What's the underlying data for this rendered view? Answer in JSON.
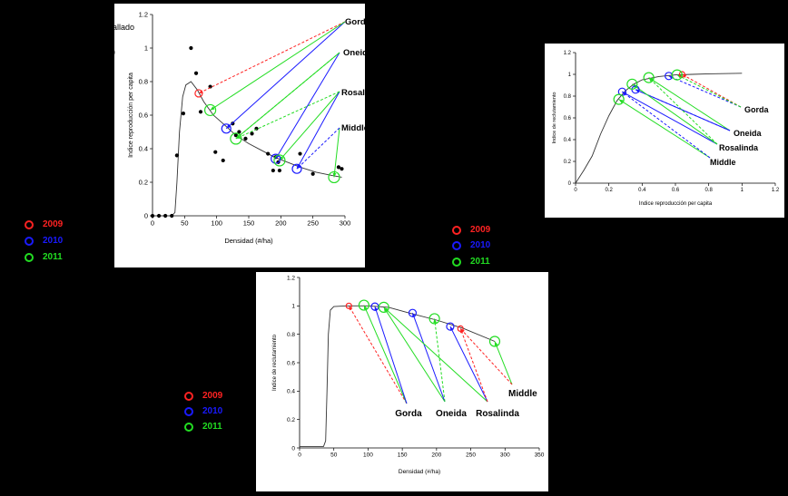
{
  "colors": {
    "y2009": "#ff2222",
    "y2010": "#1a1aff",
    "y2011": "#22dd22"
  },
  "legend": {
    "items": [
      {
        "year": "2009",
        "color": "#ff2222"
      },
      {
        "year": "2010",
        "color": "#1a1aff"
      },
      {
        "year": "2011",
        "color": "#22dd22"
      }
    ]
  },
  "left_partial": {
    "text1": "allado",
    "text2": ")"
  },
  "chart_data": [
    {
      "id": "chart1",
      "type": "scatter",
      "xlabel": "Densidad (#/ha)",
      "ylabel": "Indice reproducción per capita",
      "xlim": [
        0,
        300
      ],
      "ylim": [
        0,
        1.2
      ],
      "xticks": [
        0,
        50,
        100,
        150,
        200,
        250,
        300
      ],
      "yticks": [
        0,
        0.2,
        0.4,
        0.6,
        0.8,
        1,
        1.2
      ],
      "curve": [
        [
          0,
          0
        ],
        [
          30,
          0
        ],
        [
          35,
          0.02
        ],
        [
          38,
          0.2
        ],
        [
          42,
          0.5
        ],
        [
          47,
          0.71
        ],
        [
          52,
          0.78
        ],
        [
          60,
          0.8
        ],
        [
          70,
          0.75
        ],
        [
          80,
          0.68
        ],
        [
          95,
          0.6
        ],
        [
          110,
          0.55
        ],
        [
          130,
          0.48
        ],
        [
          150,
          0.43
        ],
        [
          170,
          0.39
        ],
        [
          190,
          0.35
        ],
        [
          210,
          0.32
        ],
        [
          230,
          0.29
        ],
        [
          255,
          0.26
        ],
        [
          280,
          0.24
        ],
        [
          295,
          0.23
        ]
      ],
      "points": [
        [
          0,
          0
        ],
        [
          10,
          0
        ],
        [
          20,
          0
        ],
        [
          30,
          0
        ],
        [
          38,
          0.36
        ],
        [
          48,
          0.61
        ],
        [
          60,
          1.0
        ],
        [
          68,
          0.85
        ],
        [
          75,
          0.62
        ],
        [
          90,
          0.77
        ],
        [
          98,
          0.38
        ],
        [
          110,
          0.33
        ],
        [
          125,
          0.55
        ],
        [
          130,
          0.48
        ],
        [
          135,
          0.5
        ],
        [
          145,
          0.46
        ],
        [
          155,
          0.49
        ],
        [
          162,
          0.52
        ],
        [
          180,
          0.37
        ],
        [
          188,
          0.27
        ],
        [
          192,
          0.35
        ],
        [
          196,
          0.32
        ],
        [
          198,
          0.27
        ],
        [
          230,
          0.37
        ],
        [
          250,
          0.25
        ],
        [
          290,
          0.29
        ],
        [
          295,
          0.28
        ]
      ],
      "markers": [
        {
          "year": "2009",
          "x": 72,
          "y": 0.73
        },
        {
          "year": "2010",
          "x": 115,
          "y": 0.52
        },
        {
          "year": "2010",
          "x": 192,
          "y": 0.34
        },
        {
          "year": "2010",
          "x": 225,
          "y": 0.28
        },
        {
          "year": "2011",
          "x": 90,
          "y": 0.63
        },
        {
          "year": "2011",
          "x": 130,
          "y": 0.46
        },
        {
          "year": "2011",
          "x": 198,
          "y": 0.33
        },
        {
          "year": "2011",
          "x": 283,
          "y": 0.23
        }
      ],
      "lakes": [
        "Gorda",
        "Oneida",
        "Rosalinda",
        "Middle"
      ]
    },
    {
      "id": "chart2",
      "type": "line",
      "xlabel": "Indice reproducción per capita",
      "ylabel": "Indice de reclutamiento",
      "xlim": [
        0,
        1.2
      ],
      "ylim": [
        0,
        1.2
      ],
      "xticks": [
        0,
        0.2,
        0.4,
        0.6,
        0.8,
        1,
        1.2
      ],
      "yticks": [
        0,
        0.2,
        0.4,
        0.6,
        0.8,
        1,
        1.2
      ],
      "curve": [
        [
          0,
          0
        ],
        [
          0.05,
          0.12
        ],
        [
          0.1,
          0.25
        ],
        [
          0.15,
          0.45
        ],
        [
          0.2,
          0.62
        ],
        [
          0.25,
          0.76
        ],
        [
          0.3,
          0.85
        ],
        [
          0.35,
          0.91
        ],
        [
          0.4,
          0.95
        ],
        [
          0.5,
          0.98
        ],
        [
          0.6,
          0.995
        ],
        [
          0.7,
          1.0
        ],
        [
          0.8,
          1.005
        ],
        [
          1.0,
          1.01
        ]
      ],
      "markers": [
        {
          "year": "2009",
          "x": 0.64,
          "y": 1.0
        },
        {
          "year": "2010",
          "x": 0.28,
          "y": 0.84
        },
        {
          "year": "2010",
          "x": 0.36,
          "y": 0.86
        },
        {
          "year": "2010",
          "x": 0.56,
          "y": 0.985
        },
        {
          "year": "2011",
          "x": 0.26,
          "y": 0.77
        },
        {
          "year": "2011",
          "x": 0.34,
          "y": 0.91
        },
        {
          "year": "2011",
          "x": 0.44,
          "y": 0.97
        },
        {
          "year": "2011",
          "x": 0.61,
          "y": 0.995
        }
      ],
      "lakes": [
        "Gorda",
        "Oneida",
        "Rosalinda",
        "Middle"
      ]
    },
    {
      "id": "chart3",
      "type": "line",
      "xlabel": "Densidad (#/ha)",
      "ylabel": "Indice de reclutamiento",
      "xlim": [
        0,
        350
      ],
      "ylim": [
        0,
        1.2
      ],
      "xticks": [
        0,
        50,
        100,
        150,
        200,
        250,
        300,
        350
      ],
      "yticks": [
        0,
        0.2,
        0.4,
        0.6,
        0.8,
        1,
        1.2
      ],
      "curve": [
        [
          0,
          0.01
        ],
        [
          35,
          0.01
        ],
        [
          38,
          0.05
        ],
        [
          40,
          0.4
        ],
        [
          42,
          0.8
        ],
        [
          45,
          0.97
        ],
        [
          50,
          0.995
        ],
        [
          70,
          1.0
        ],
        [
          100,
          1.0
        ],
        [
          130,
          0.99
        ],
        [
          160,
          0.95
        ],
        [
          200,
          0.9
        ],
        [
          240,
          0.84
        ],
        [
          285,
          0.75
        ]
      ],
      "markers": [
        {
          "year": "2009",
          "x": 72,
          "y": 1.0
        },
        {
          "year": "2009",
          "x": 235,
          "y": 0.84
        },
        {
          "year": "2010",
          "x": 110,
          "y": 0.995
        },
        {
          "year": "2010",
          "x": 165,
          "y": 0.95
        },
        {
          "year": "2010",
          "x": 220,
          "y": 0.855
        },
        {
          "year": "2011",
          "x": 94,
          "y": 1.005
        },
        {
          "year": "2011",
          "x": 123,
          "y": 0.99
        },
        {
          "year": "2011",
          "x": 197,
          "y": 0.91
        },
        {
          "year": "2011",
          "x": 285,
          "y": 0.75
        }
      ],
      "lakes": [
        "Gorda",
        "Oneida",
        "Rosalinda",
        "Middle"
      ]
    }
  ]
}
